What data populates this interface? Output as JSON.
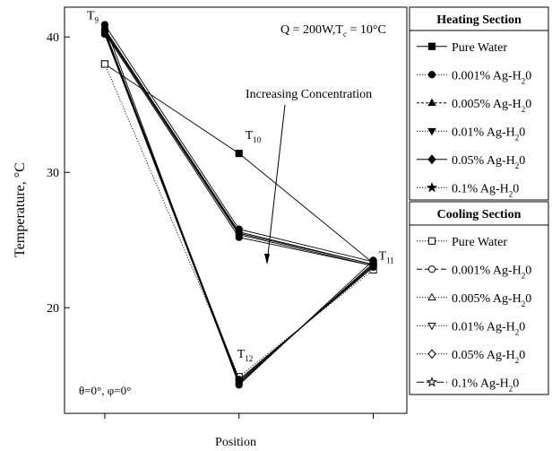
{
  "chart_data": {
    "type": "line",
    "x": [
      0,
      1,
      2
    ],
    "xlim": [
      -0.3,
      2.25
    ],
    "ylim": [
      12.2,
      42.2
    ],
    "yticks": [
      20,
      30,
      40
    ],
    "xlabel": "Position",
    "ylabel": "Temperature, °C",
    "grid": false,
    "legend_position": "right",
    "point_labels": [
      {
        "text": "T",
        "sub": "9",
        "x": 0,
        "y": 40.9
      },
      {
        "text": "T",
        "sub": "10",
        "x": 1,
        "y": 31.4
      },
      {
        "text": "T",
        "sub": "11",
        "x": 2,
        "y": 23.3
      },
      {
        "text": "T",
        "sub": "12",
        "x": 1,
        "y": 14.6
      }
    ],
    "annotations": {
      "conditions": "Q = 200W,T",
      "conditions_sub": "c",
      "conditions_tail": " =  10°C",
      "trend_label": "Increasing Concentration",
      "angles": "θ=0°, φ=0°"
    },
    "legend_groups": [
      {
        "title": "Heating Section",
        "series": [
          {
            "name": "Pure Water",
            "marker": "square",
            "fill": "#000000",
            "dash": "none"
          },
          {
            "name": "0.001% Ag-H",
            "sub": "2",
            "tail": "0",
            "marker": "circle",
            "fill": "#000000",
            "dash": "1.2 1.8"
          },
          {
            "name": "0.005% Ag-H",
            "sub": "2",
            "tail": "0",
            "marker": "triangle-up",
            "fill": "#000000",
            "dash": "3 2"
          },
          {
            "name": "0.01% Ag-H",
            "sub": "2",
            "tail": "0",
            "marker": "triangle-down",
            "fill": "#000000",
            "dash": "1.2 1.8"
          },
          {
            "name": "0.05% Ag-H",
            "sub": "2",
            "tail": "0",
            "marker": "diamond",
            "fill": "#000000",
            "dash": "none"
          },
          {
            "name": "0.1% Ag-H",
            "sub": "2",
            "tail": "0",
            "marker": "star",
            "fill": "#000000",
            "dash": "1.2 1.8"
          }
        ]
      },
      {
        "title": "Cooling Section",
        "series": [
          {
            "name": "Pure Water",
            "marker": "square",
            "fill": "#ffffff",
            "dash": "1.2 1.8"
          },
          {
            "name": "0.001% Ag-H",
            "sub": "2",
            "tail": "0",
            "marker": "circle",
            "fill": "#ffffff",
            "dash": "6 3"
          },
          {
            "name": "0.005% Ag-H",
            "sub": "2",
            "tail": "0",
            "marker": "triangle-up",
            "fill": "#ffffff",
            "dash": "1.2 1.8"
          },
          {
            "name": "0.01% Ag-H",
            "sub": "2",
            "tail": "0",
            "marker": "triangle-down",
            "fill": "#ffffff",
            "dash": "1.2 1.8"
          },
          {
            "name": "0.05% Ag-H",
            "sub": "2",
            "tail": "0",
            "marker": "diamond",
            "fill": "#ffffff",
            "dash": "1.2 1.8"
          },
          {
            "name": "0.1% Ag-H",
            "sub": "2",
            "tail": "0",
            "marker": "star",
            "fill": "#ffffff",
            "dash": "8 3"
          }
        ]
      }
    ],
    "series": [
      {
        "group": "Heating Section",
        "name": "Pure Water",
        "values": [
          38.0,
          31.4,
          23.3
        ]
      },
      {
        "group": "Heating Section",
        "name": "0.001% Ag-H2O",
        "values": [
          40.4,
          25.4,
          23.1
        ]
      },
      {
        "group": "Heating Section",
        "name": "0.005% Ag-H2O",
        "values": [
          40.6,
          25.6,
          23.2
        ]
      },
      {
        "group": "Heating Section",
        "name": "0.01% Ag-H2O",
        "values": [
          40.5,
          25.5,
          23.2
        ]
      },
      {
        "group": "Heating Section",
        "name": "0.05% Ag-H2O",
        "values": [
          40.3,
          25.2,
          23.1
        ]
      },
      {
        "group": "Heating Section",
        "name": "0.1% Ag-H2O",
        "values": [
          40.9,
          25.8,
          23.4
        ]
      },
      {
        "group": "Cooling Section",
        "name": "Pure Water",
        "values": [
          38.0,
          14.9,
          22.8
        ]
      },
      {
        "group": "Cooling Section",
        "name": "0.001% Ag-H2O",
        "values": [
          40.3,
          14.7,
          23.0
        ]
      },
      {
        "group": "Cooling Section",
        "name": "0.005% Ag-H2O",
        "values": [
          40.5,
          14.6,
          23.1
        ]
      },
      {
        "group": "Cooling Section",
        "name": "0.01% Ag-H2O",
        "values": [
          40.4,
          14.5,
          23.2
        ]
      },
      {
        "group": "Cooling Section",
        "name": "0.05% Ag-H2O",
        "values": [
          40.2,
          14.4,
          23.3
        ]
      },
      {
        "group": "Cooling Section",
        "name": "0.1% Ag-H2O",
        "values": [
          40.9,
          14.3,
          23.5
        ]
      }
    ]
  }
}
